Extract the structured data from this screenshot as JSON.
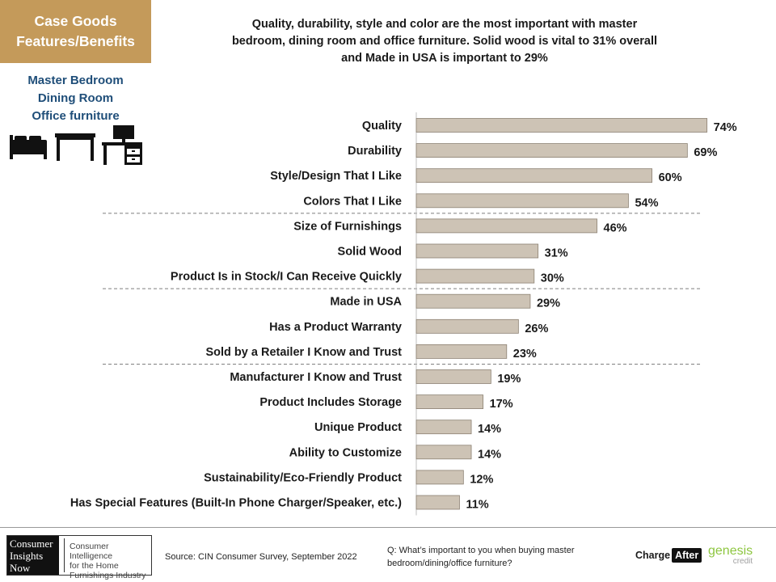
{
  "section": {
    "line1": "Case Goods",
    "line2": "Features/Benefits"
  },
  "headline": {
    "line1": "Quality, durability, style and color are the most important with master",
    "line2": "bedroom, dining room and office furniture. Solid wood is vital to 31% overall",
    "line3": "and Made in USA is important to 29%"
  },
  "categories": [
    "Master Bedroom",
    "Dining Room",
    "Office furniture"
  ],
  "icons": [
    "bed-icon",
    "table-icon",
    "desk-icon"
  ],
  "colors": {
    "section_bg": "#c49a5a",
    "category_text": "#1f4e79",
    "bar_fill": "#cdc3b5",
    "bar_stroke": "#8c8173",
    "genesis_green": "#8dc63f"
  },
  "chart_data": {
    "type": "bar",
    "orientation": "horizontal",
    "categories": [
      "Quality",
      "Durability",
      "Style/Design That I Like",
      "Colors That I Like",
      "Size of Furnishings",
      "Solid Wood",
      "Product Is in Stock/I Can Receive Quickly",
      "Made in USA",
      "Has a Product Warranty",
      "Sold by a Retailer I Know and Trust",
      "Manufacturer I Know and Trust",
      "Product Includes Storage",
      "Unique Product",
      "Ability to Customize",
      "Sustainability/Eco-Friendly Product",
      "Has Special Features (Built-In Phone Charger/Speaker, etc.)"
    ],
    "values": [
      74,
      69,
      60,
      54,
      46,
      31,
      30,
      29,
      26,
      23,
      19,
      17,
      14,
      14,
      12,
      11
    ],
    "value_labels": [
      "74%",
      "69%",
      "60%",
      "54%",
      "46%",
      "31%",
      "30%",
      "29%",
      "26%",
      "23%",
      "19%",
      "17%",
      "14%",
      "14%",
      "12%",
      "11%"
    ],
    "group_dividers_after_index": [
      3,
      6,
      9
    ],
    "xlim": [
      0,
      100
    ],
    "title": "",
    "xlabel": "",
    "ylabel": ""
  },
  "footer": {
    "logo_lines": [
      "Consumer",
      "Insights",
      "Now"
    ],
    "tagline_lines": [
      "Consumer Intelligence",
      "for the Home",
      "Furnishings Industry"
    ],
    "source": "Source: CIN Consumer Survey, September  2022",
    "question_line1": "Q: What’s important to you when buying master",
    "question_line2": "bedroom/dining/office furniture?",
    "chargeafter_charge": "Charge",
    "chargeafter_after": "After",
    "genesis": "genesis",
    "genesis_credit": "credit"
  }
}
